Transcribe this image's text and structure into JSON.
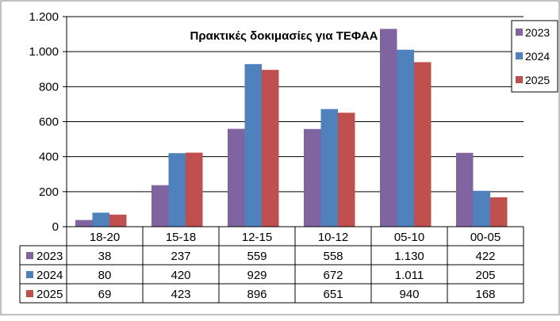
{
  "chart_data": {
    "type": "bar",
    "title": "Πρακτικές δοκιμασίες για ΤΕΦΑΑ",
    "categories": [
      "18-20",
      "15-18",
      "12-15",
      "10-12",
      "05-10",
      "00-05"
    ],
    "series": [
      {
        "name": "2023",
        "color": "#8064A2",
        "values": [
          38,
          237,
          559,
          558,
          1130,
          422
        ],
        "labels": [
          "38",
          "237",
          "559",
          "558",
          "1.130",
          "422"
        ]
      },
      {
        "name": "2024",
        "color": "#4F81BD",
        "values": [
          80,
          420,
          929,
          672,
          1011,
          205
        ],
        "labels": [
          "80",
          "420",
          "929",
          "672",
          "1.011",
          "205"
        ]
      },
      {
        "name": "2025",
        "color": "#C0504D",
        "values": [
          69,
          423,
          896,
          651,
          940,
          168
        ],
        "labels": [
          "69",
          "423",
          "896",
          "651",
          "940",
          "168"
        ]
      }
    ],
    "ylim": [
      0,
      1200
    ],
    "yticks": [
      0,
      200,
      400,
      600,
      800,
      1000,
      1200
    ],
    "ytick_labels": [
      "0",
      "200",
      "400",
      "600",
      "800",
      "1.000",
      "1.200"
    ],
    "grid": true,
    "legend": "right",
    "data_table": true
  }
}
